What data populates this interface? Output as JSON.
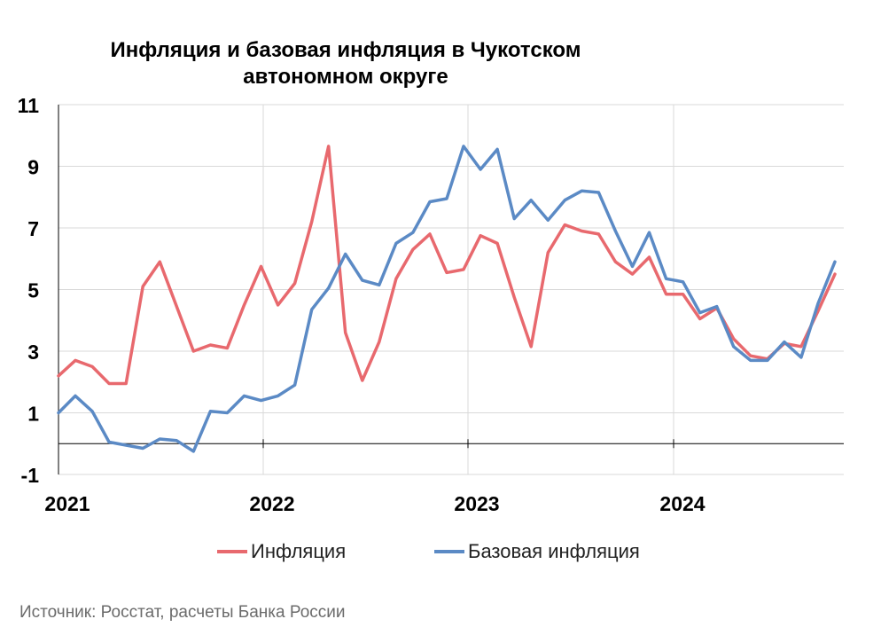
{
  "chart_data": {
    "type": "line",
    "title": "Инфляция и базовая инфляция в Чукотском автономном округе",
    "title_lines": [
      "Инфляция и базовая инфляция в Чукотском",
      "автономном округе"
    ],
    "x_labels": [
      "2021",
      "2022",
      "2023",
      "2024"
    ],
    "y_ticks": [
      "11",
      "9",
      "7",
      "5",
      "3",
      "1",
      "-1"
    ],
    "ylim": [
      -1,
      11
    ],
    "grid": true,
    "legend_position": "bottom",
    "series": [
      {
        "name": "Инфляция",
        "color": "#e8696e",
        "values": [
          2.2,
          2.7,
          2.5,
          1.95,
          1.95,
          5.1,
          5.9,
          4.45,
          3.0,
          3.2,
          3.1,
          4.5,
          5.75,
          4.5,
          5.2,
          7.2,
          9.65,
          3.6,
          2.05,
          3.3,
          5.35,
          6.3,
          6.8,
          5.55,
          5.65,
          6.75,
          6.5,
          4.75,
          3.15,
          6.2,
          7.1,
          6.9,
          6.8,
          5.9,
          5.5,
          6.05,
          4.85,
          4.85,
          4.05,
          4.4,
          3.4,
          2.85,
          2.75,
          3.25,
          3.15,
          4.3,
          5.5
        ],
        "end_label": ""
      },
      {
        "name": "Базовая инфляция",
        "color": "#5b8ac5",
        "values": [
          1.0,
          1.55,
          1.05,
          0.05,
          -0.05,
          -0.15,
          0.15,
          0.1,
          -0.25,
          1.05,
          1.0,
          1.55,
          1.4,
          1.55,
          1.9,
          4.35,
          5.05,
          6.15,
          5.3,
          5.15,
          6.5,
          6.85,
          7.85,
          7.95,
          9.65,
          8.9,
          9.55,
          7.3,
          7.9,
          7.25,
          7.9,
          8.2,
          8.15,
          6.9,
          5.75,
          6.85,
          5.35,
          5.25,
          4.25,
          4.45,
          3.15,
          2.7,
          2.7,
          3.3,
          2.8,
          4.55,
          5.9
        ],
        "end_label": ""
      }
    ]
  },
  "source": "Источник: Росстат, расчеты Банка России"
}
